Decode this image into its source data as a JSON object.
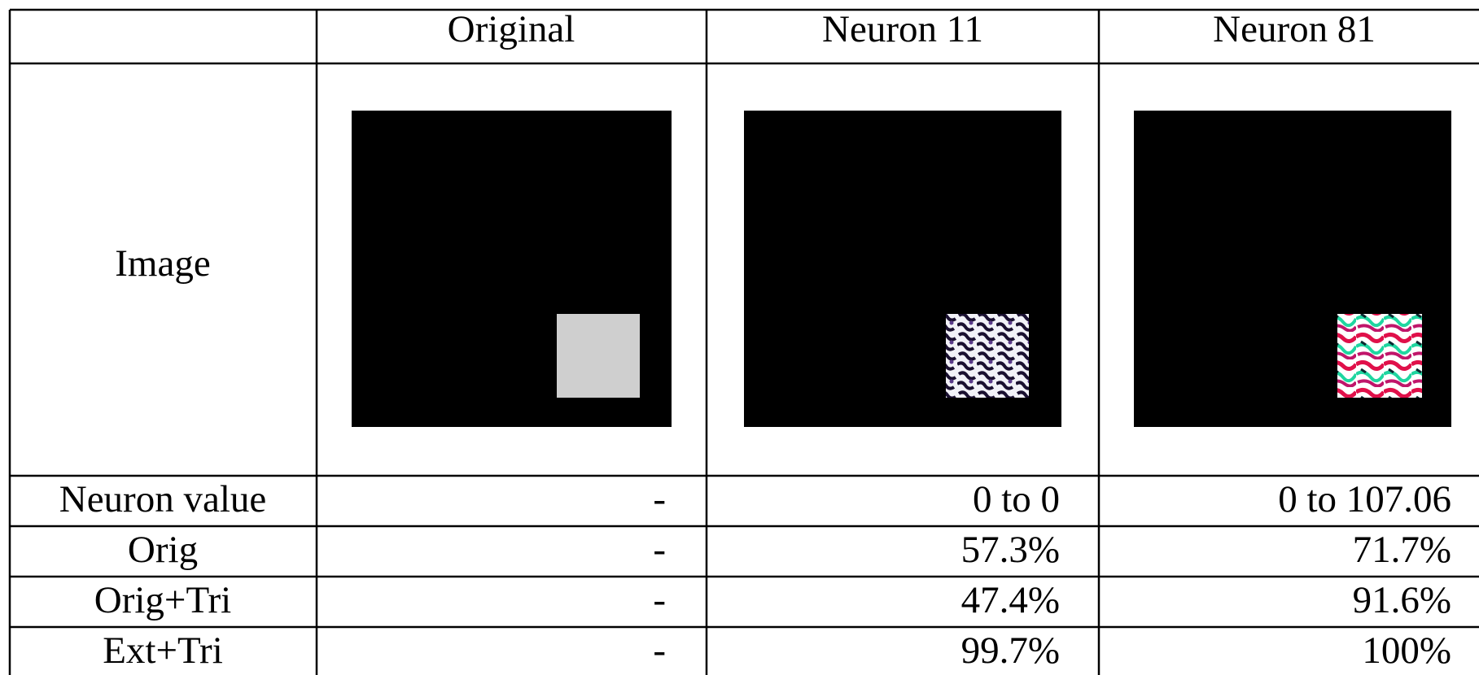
{
  "table": {
    "columns": [
      "Original",
      "Neuron 11",
      "Neuron 81"
    ],
    "image_row_label": "Image",
    "rows": [
      [
        "Neuron value",
        "-",
        "0 to 0",
        "0 to 107.06"
      ],
      [
        "Orig",
        "-",
        "57.3%",
        "71.7%"
      ],
      [
        "Orig+Tri",
        "-",
        "47.4%",
        "91.6%"
      ],
      [
        "Ext+Tri",
        "-",
        "99.7%",
        "100%"
      ]
    ]
  }
}
